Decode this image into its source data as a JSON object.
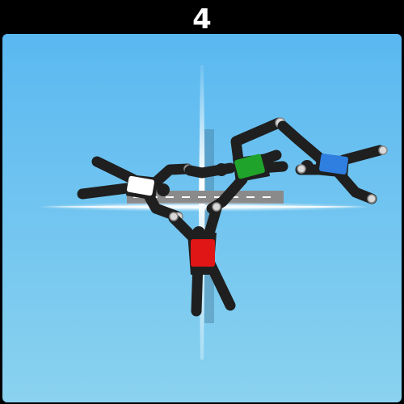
{
  "hud": {
    "score": "4"
  },
  "colors": {
    "sky_top": "#5ab8f0",
    "sky_bottom": "#8ad2ef",
    "horizon": "#eef8ff",
    "runway": "#8a8a8a",
    "runway_marking": "#ffffff",
    "skydiver_body": "#1f1f1f",
    "hand": "#d9d9d9"
  },
  "skydivers": [
    {
      "name": "white",
      "color": "#ffffff"
    },
    {
      "name": "green",
      "color": "#1fa32a"
    },
    {
      "name": "blue",
      "color": "#2f7fe0"
    },
    {
      "name": "red",
      "color": "#e01515"
    }
  ]
}
